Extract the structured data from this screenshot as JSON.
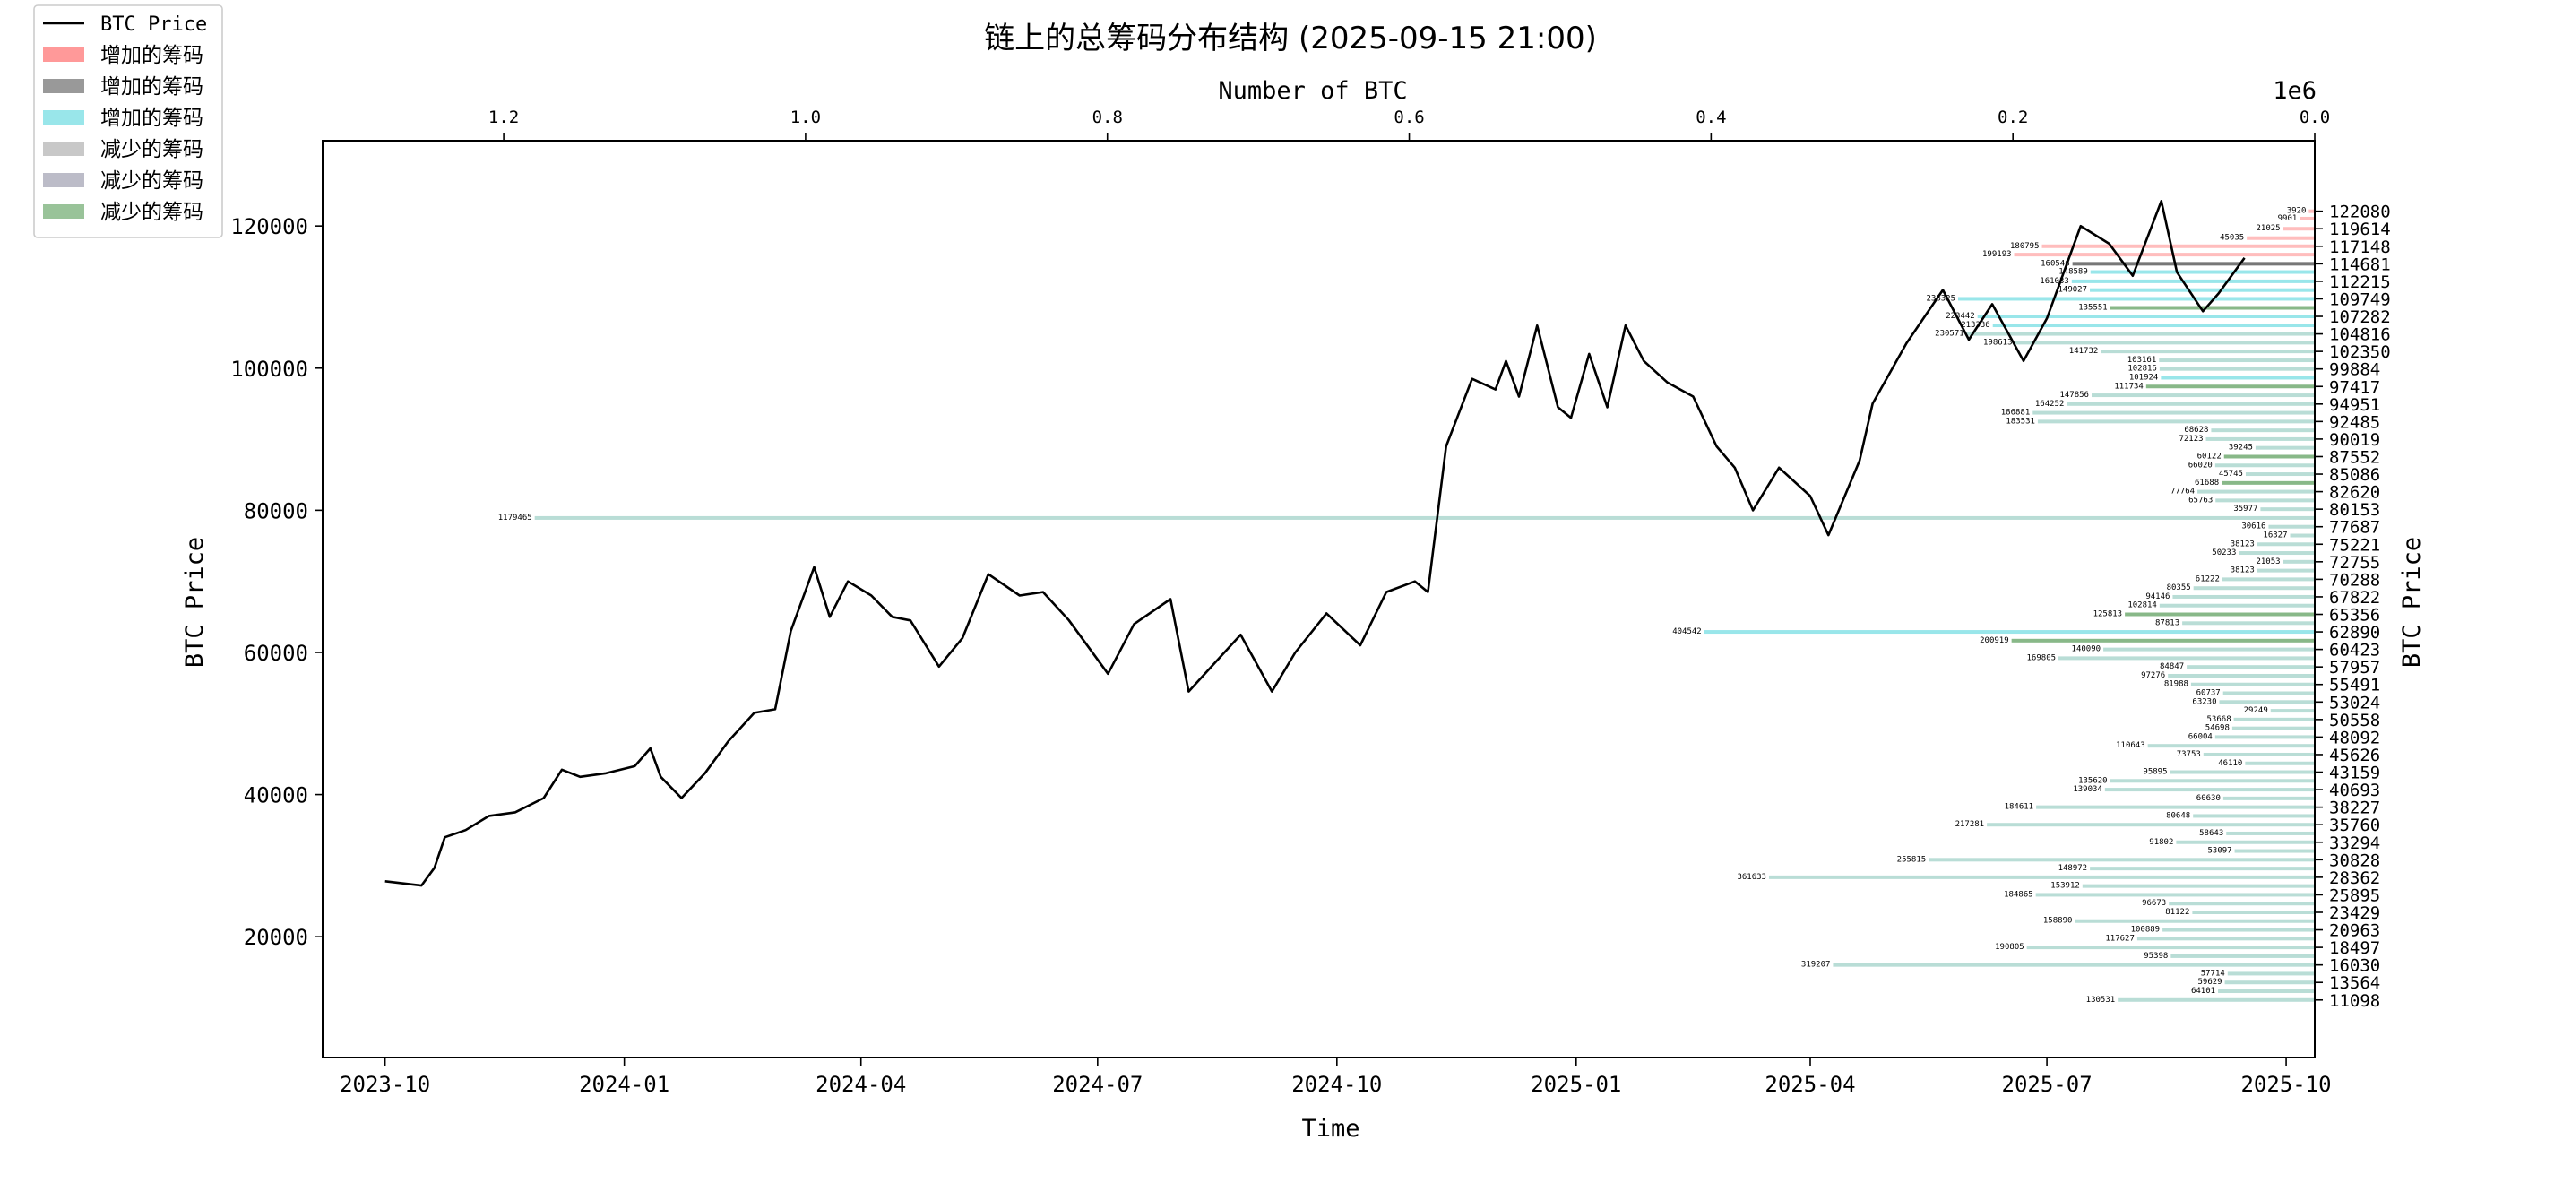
{
  "chart_data": {
    "type": "line",
    "title": "链上的总筹码分布结构 (2025-09-15 21:00)",
    "xlabel": "Time",
    "ylabel": "BTC Price",
    "ylabel_right": "BTC Price",
    "xlabel_top": "Number of BTC",
    "top_axis_multiplier": "1e6",
    "ylim": [
      3000,
      132000
    ],
    "xlim": [
      "2023-09-07",
      "2025-10-12"
    ],
    "top_xlim": [
      1.32,
      0.0
    ],
    "x_ticks": [
      "2023-10",
      "2024-01",
      "2024-04",
      "2024-07",
      "2024-10",
      "2025-01",
      "2025-04",
      "2025-07",
      "2025-10"
    ],
    "y_ticks": [
      20000,
      40000,
      60000,
      80000,
      100000,
      120000
    ],
    "top_ticks": [
      "1.2",
      "1.0",
      "0.8",
      "0.6",
      "0.4",
      "0.2",
      "0.0"
    ],
    "top_tick_values": [
      1.2,
      1.0,
      0.8,
      0.6,
      0.4,
      0.2,
      0.0
    ],
    "right_ticks": [
      "122080",
      "119614",
      "117148",
      "114681",
      "112215",
      "109749",
      "107282",
      "104816",
      "102350",
      "99884",
      "97417",
      "94951",
      "92485",
      "90019",
      "87552",
      "85086",
      "82620",
      "80153",
      "77687",
      "75221",
      "72755",
      "70288",
      "67822",
      "65356",
      "62890",
      "60423",
      "57957",
      "55491",
      "53024",
      "50558",
      "48092",
      "45626",
      "43159",
      "40693",
      "38227",
      "35760",
      "33294",
      "30828",
      "28362",
      "25895",
      "23429",
      "20963",
      "18497",
      "16030",
      "13564",
      "11098"
    ],
    "grid": false,
    "legend": {
      "position": "top-left",
      "entries": [
        {
          "label": "BTC Price",
          "kind": "line",
          "color": "#000000"
        },
        {
          "label": "增加的筹码",
          "kind": "patch",
          "color": "#ff9999"
        },
        {
          "label": "增加的筹码",
          "kind": "patch",
          "color": "#999999"
        },
        {
          "label": "增加的筹码",
          "kind": "patch",
          "color": "#99e6ea"
        },
        {
          "label": "减少的筹码",
          "kind": "patch",
          "color": "#c8c8c8"
        },
        {
          "label": "减少的筹码",
          "kind": "patch",
          "color": "#bcbcc8"
        },
        {
          "label": "减少的筹码",
          "kind": "patch",
          "color": "#99c399"
        }
      ]
    },
    "series": [
      {
        "name": "BTC Price",
        "x": [
          "2023-10-01",
          "2023-10-08",
          "2023-10-15",
          "2023-10-20",
          "2023-10-24",
          "2023-11-01",
          "2023-11-10",
          "2023-11-20",
          "2023-12-01",
          "2023-12-08",
          "2023-12-15",
          "2023-12-25",
          "2024-01-05",
          "2024-01-11",
          "2024-01-15",
          "2024-01-23",
          "2024-02-01",
          "2024-02-10",
          "2024-02-20",
          "2024-02-28",
          "2024-03-05",
          "2024-03-14",
          "2024-03-20",
          "2024-03-27",
          "2024-04-05",
          "2024-04-13",
          "2024-04-20",
          "2024-05-01",
          "2024-05-10",
          "2024-05-20",
          "2024-06-01",
          "2024-06-10",
          "2024-06-20",
          "2024-07-05",
          "2024-07-15",
          "2024-07-29",
          "2024-08-05",
          "2024-08-15",
          "2024-08-25",
          "2024-09-06",
          "2024-09-15",
          "2024-09-27",
          "2024-10-10",
          "2024-10-20",
          "2024-10-31",
          "2024-11-05",
          "2024-11-12",
          "2024-11-22",
          "2024-12-01",
          "2024-12-05",
          "2024-12-10",
          "2024-12-17",
          "2024-12-25",
          "2024-12-30",
          "2025-01-06",
          "2025-01-13",
          "2025-01-20",
          "2025-01-27",
          "2025-02-05",
          "2025-02-15",
          "2025-02-24",
          "2025-03-03",
          "2025-03-10",
          "2025-03-20",
          "2025-04-01",
          "2025-04-08",
          "2025-04-20",
          "2025-04-25",
          "2025-05-08",
          "2025-05-22",
          "2025-06-01",
          "2025-06-10",
          "2025-06-22",
          "2025-07-01",
          "2025-07-10",
          "2025-07-14",
          "2025-07-25",
          "2025-08-03",
          "2025-08-14",
          "2025-08-20",
          "2025-08-30",
          "2025-09-05",
          "2025-09-15"
        ],
        "values": [
          27800,
          27500,
          27200,
          29700,
          34000,
          35000,
          37000,
          37500,
          39500,
          43500,
          42500,
          43000,
          44000,
          46500,
          42500,
          39500,
          43000,
          47500,
          51500,
          52000,
          63000,
          72000,
          65000,
          70000,
          68000,
          65000,
          64500,
          58000,
          62000,
          71000,
          68000,
          68500,
          64500,
          57000,
          64000,
          67500,
          54500,
          58500,
          62500,
          54500,
          60000,
          65500,
          61000,
          68500,
          70000,
          68500,
          89000,
          98500,
          97000,
          101000,
          96000,
          106000,
          94500,
          93000,
          102000,
          94500,
          106000,
          101000,
          98000,
          96000,
          89000,
          86000,
          80000,
          86000,
          82000,
          76500,
          87000,
          95000,
          103500,
          111000,
          104000,
          109000,
          101000,
          107000,
          116000,
          120000,
          117500,
          113000,
          123500,
          113500,
          108000,
          110500,
          115500
        ]
      }
    ],
    "chip_bars": [
      {
        "price": 122080,
        "amount": 3920,
        "label": "3920",
        "color": "#ffbdbd"
      },
      {
        "price": 121034,
        "amount": 9901,
        "label": "9901",
        "color": "#ffbdbd"
      },
      {
        "price": 119614,
        "amount": 21025,
        "label": "21025",
        "color": "#ffbdbd"
      },
      {
        "price": 118290,
        "amount": 45035,
        "label": "45035",
        "color": "#ffbdbd"
      },
      {
        "price": 117148,
        "amount": 180795,
        "label": "180795",
        "color": "#ffbdbd"
      },
      {
        "price": 115970,
        "amount": 199193,
        "label": "199193",
        "color": "#ffbdbd"
      },
      {
        "price": 114681,
        "amount": 160546,
        "label": "160546",
        "color": "#777777"
      },
      {
        "price": 113520,
        "amount": 148589,
        "label": "148589",
        "color": "#99e6ea"
      },
      {
        "price": 112215,
        "amount": 161033,
        "label": "161033",
        "color": "#99e6ea"
      },
      {
        "price": 110980,
        "amount": 149027,
        "label": "149027",
        "color": "#99e6ea"
      },
      {
        "price": 109749,
        "amount": 236325,
        "label": "236325",
        "color": "#99e6ea"
      },
      {
        "price": 108480,
        "amount": 135551,
        "label": "135551",
        "color": "#88b888"
      },
      {
        "price": 107282,
        "amount": 223442,
        "label": "223442",
        "color": "#99e6ea"
      },
      {
        "price": 106020,
        "amount": 213336,
        "label": "213336",
        "color": "#99e6ea"
      },
      {
        "price": 104816,
        "amount": 230571,
        "label": "230571",
        "color": "#b9ddd6"
      },
      {
        "price": 103580,
        "amount": 198613,
        "label": "198613",
        "color": "#b9ddd6"
      },
      {
        "price": 102350,
        "amount": 141732,
        "label": "141732",
        "color": "#b9ddd6"
      },
      {
        "price": 101100,
        "amount": 103161,
        "label": "103161",
        "color": "#b9ddd6"
      },
      {
        "price": 99884,
        "amount": 102816,
        "label": "102816",
        "color": "#b9ddd6"
      },
      {
        "price": 98650,
        "amount": 101924,
        "label": "101924",
        "color": "#99e6ea"
      },
      {
        "price": 97417,
        "amount": 111734,
        "label": "111734",
        "color": "#88b888"
      },
      {
        "price": 96180,
        "amount": 147856,
        "label": "147856",
        "color": "#b9ddd6"
      },
      {
        "price": 94951,
        "amount": 164252,
        "label": "164252",
        "color": "#b9ddd6"
      },
      {
        "price": 93720,
        "amount": 186881,
        "label": "186881",
        "color": "#b9ddd6"
      },
      {
        "price": 92485,
        "amount": 183531,
        "label": "183531",
        "color": "#b9ddd6"
      },
      {
        "price": 91250,
        "amount": 68628,
        "label": "68628",
        "color": "#b9ddd6"
      },
      {
        "price": 90019,
        "amount": 72123,
        "label": "72123",
        "color": "#b9ddd6"
      },
      {
        "price": 88790,
        "amount": 39245,
        "label": "39245",
        "color": "#b9ddd6"
      },
      {
        "price": 87552,
        "amount": 60122,
        "label": "60122",
        "color": "#88b888"
      },
      {
        "price": 86320,
        "amount": 66020,
        "label": "66020",
        "color": "#b9ddd6"
      },
      {
        "price": 85086,
        "amount": 45745,
        "label": "45745",
        "color": "#b9ddd6"
      },
      {
        "price": 83850,
        "amount": 61688,
        "label": "61688",
        "color": "#88b888"
      },
      {
        "price": 82620,
        "amount": 77764,
        "label": "77764",
        "color": "#b9ddd6"
      },
      {
        "price": 81390,
        "amount": 65763,
        "label": "65763",
        "color": "#b9ddd6"
      },
      {
        "price": 80153,
        "amount": 35977,
        "label": "35977",
        "color": "#b9ddd6"
      },
      {
        "price": 78920,
        "amount": 1179465,
        "label": "1179465",
        "color": "#b9ddd6"
      },
      {
        "price": 77687,
        "amount": 30616,
        "label": "30616",
        "color": "#b9ddd6"
      },
      {
        "price": 76450,
        "amount": 16327,
        "label": "16327",
        "color": "#b9ddd6"
      },
      {
        "price": 75221,
        "amount": 38123,
        "label": "38123",
        "color": "#b9ddd6"
      },
      {
        "price": 73990,
        "amount": 50233,
        "label": "50233",
        "color": "#b9ddd6"
      },
      {
        "price": 72755,
        "amount": 21053,
        "label": "21053",
        "color": "#b9ddd6"
      },
      {
        "price": 71520,
        "amount": 38123,
        "label": "38123",
        "color": "#b9ddd6"
      },
      {
        "price": 70288,
        "amount": 61222,
        "label": "61222",
        "color": "#b9ddd6"
      },
      {
        "price": 69050,
        "amount": 80355,
        "label": "80355",
        "color": "#b9ddd6"
      },
      {
        "price": 67822,
        "amount": 94146,
        "label": "94146",
        "color": "#b9ddd6"
      },
      {
        "price": 66590,
        "amount": 102814,
        "label": "102814",
        "color": "#b9ddd6"
      },
      {
        "price": 65356,
        "amount": 125813,
        "label": "125813",
        "color": "#88b888"
      },
      {
        "price": 64120,
        "amount": 87813,
        "label": "87813",
        "color": "#b9ddd6"
      },
      {
        "price": 62890,
        "amount": 404542,
        "label": "404542",
        "color": "#99e6ea"
      },
      {
        "price": 61660,
        "amount": 200919,
        "label": "200919",
        "color": "#88b888"
      },
      {
        "price": 60423,
        "amount": 140090,
        "label": "140090",
        "color": "#b9ddd6"
      },
      {
        "price": 59190,
        "amount": 169805,
        "label": "169805",
        "color": "#b9ddd6"
      },
      {
        "price": 57957,
        "amount": 84847,
        "label": "84847",
        "color": "#b9ddd6"
      },
      {
        "price": 56720,
        "amount": 97276,
        "label": "97276",
        "color": "#b9ddd6"
      },
      {
        "price": 55491,
        "amount": 81988,
        "label": "81988",
        "color": "#b9ddd6"
      },
      {
        "price": 54260,
        "amount": 60737,
        "label": "60737",
        "color": "#b9ddd6"
      },
      {
        "price": 53024,
        "amount": 63230,
        "label": "63230",
        "color": "#b9ddd6"
      },
      {
        "price": 51790,
        "amount": 29249,
        "label": "29249",
        "color": "#b9ddd6"
      },
      {
        "price": 50558,
        "amount": 53668,
        "label": "53668",
        "color": "#b9ddd6"
      },
      {
        "price": 49320,
        "amount": 54698,
        "label": "54698",
        "color": "#b9ddd6"
      },
      {
        "price": 48092,
        "amount": 66004,
        "label": "66004",
        "color": "#b9ddd6"
      },
      {
        "price": 46860,
        "amount": 110643,
        "label": "110643",
        "color": "#b9ddd6"
      },
      {
        "price": 45626,
        "amount": 73753,
        "label": "73753",
        "color": "#b9ddd6"
      },
      {
        "price": 44390,
        "amount": 46110,
        "label": "46110",
        "color": "#b9ddd6"
      },
      {
        "price": 43159,
        "amount": 95895,
        "label": "95895",
        "color": "#b9ddd6"
      },
      {
        "price": 41930,
        "amount": 135620,
        "label": "135620",
        "color": "#b9ddd6"
      },
      {
        "price": 40693,
        "amount": 139034,
        "label": "139034",
        "color": "#b9ddd6"
      },
      {
        "price": 39460,
        "amount": 60630,
        "label": "60630",
        "color": "#b9ddd6"
      },
      {
        "price": 38227,
        "amount": 184611,
        "label": "184611",
        "color": "#b9ddd6"
      },
      {
        "price": 36990,
        "amount": 80648,
        "label": "80648",
        "color": "#b9ddd6"
      },
      {
        "price": 35760,
        "amount": 217281,
        "label": "217281",
        "color": "#b9ddd6"
      },
      {
        "price": 34530,
        "amount": 58643,
        "label": "58643",
        "color": "#b9ddd6"
      },
      {
        "price": 33294,
        "amount": 91802,
        "label": "91802",
        "color": "#b9ddd6"
      },
      {
        "price": 32060,
        "amount": 53097,
        "label": "53097",
        "color": "#b9ddd6"
      },
      {
        "price": 30828,
        "amount": 255815,
        "label": "255815",
        "color": "#b9ddd6"
      },
      {
        "price": 29590,
        "amount": 148972,
        "label": "148972",
        "color": "#b9ddd6"
      },
      {
        "price": 28362,
        "amount": 361633,
        "label": "361633",
        "color": "#b9ddd6"
      },
      {
        "price": 27130,
        "amount": 153912,
        "label": "153912",
        "color": "#b9ddd6"
      },
      {
        "price": 25895,
        "amount": 184865,
        "label": "184865",
        "color": "#b9ddd6"
      },
      {
        "price": 24660,
        "amount": 96673,
        "label": "96673",
        "color": "#b9ddd6"
      },
      {
        "price": 23429,
        "amount": 81122,
        "label": "81122",
        "color": "#b9ddd6"
      },
      {
        "price": 22200,
        "amount": 158890,
        "label": "158890",
        "color": "#b9ddd6"
      },
      {
        "price": 20963,
        "amount": 100889,
        "label": "100889",
        "color": "#b9ddd6"
      },
      {
        "price": 19730,
        "amount": 117627,
        "label": "117627",
        "color": "#b9ddd6"
      },
      {
        "price": 18497,
        "amount": 190805,
        "label": "190805",
        "color": "#b9ddd6"
      },
      {
        "price": 17260,
        "amount": 95398,
        "label": "95398",
        "color": "#b9ddd6"
      },
      {
        "price": 16030,
        "amount": 319207,
        "label": "319207",
        "color": "#b9ddd6"
      },
      {
        "price": 14800,
        "amount": 57714,
        "label": "57714",
        "color": "#b9ddd6"
      },
      {
        "price": 13564,
        "amount": 59629,
        "label": "59629",
        "color": "#b9ddd6"
      },
      {
        "price": 12330,
        "amount": 64101,
        "label": "64101",
        "color": "#b9ddd6"
      },
      {
        "price": 11098,
        "amount": 130531,
        "label": "130531",
        "color": "#b9ddd6"
      }
    ]
  }
}
